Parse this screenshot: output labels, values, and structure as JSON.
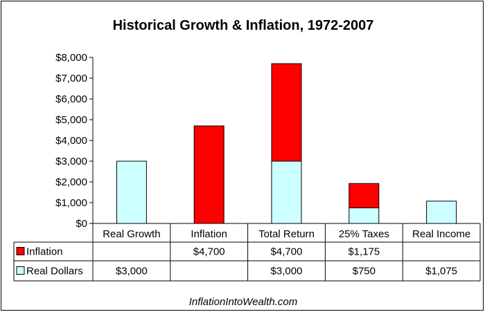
{
  "chart_data": {
    "type": "bar",
    "stacked": true,
    "title": "Historical Growth & Inflation, 1972-2007",
    "categories": [
      "Real Growth",
      "Inflation",
      "Total Return",
      "25% Taxes",
      "Real Income"
    ],
    "ylim": [
      0,
      8000
    ],
    "y_ticks": [
      0,
      1000,
      2000,
      3000,
      4000,
      5000,
      6000,
      7000,
      8000
    ],
    "y_tick_labels": [
      "$0",
      "$1,000",
      "$2,000",
      "$3,000",
      "$4,000",
      "$5,000",
      "$6,000",
      "$7,000",
      "$8,000"
    ],
    "grid": false,
    "legend": "data-table-left",
    "series": [
      {
        "name": "Real Dollars",
        "color": "#ccffff",
        "values": [
          3000,
          0,
          3000,
          750,
          1075
        ],
        "labels": [
          "$3,000",
          "",
          "$3,000",
          "$750",
          "$1,075"
        ]
      },
      {
        "name": "Inflation",
        "color": "#ff0000",
        "values": [
          0,
          4700,
          4700,
          1175,
          0
        ],
        "labels": [
          "",
          "$4,700",
          "$4,700",
          "$1,175",
          ""
        ]
      }
    ],
    "table_row_order": [
      "Inflation",
      "Real Dollars"
    ],
    "footer": "InflationIntoWealth.com"
  }
}
